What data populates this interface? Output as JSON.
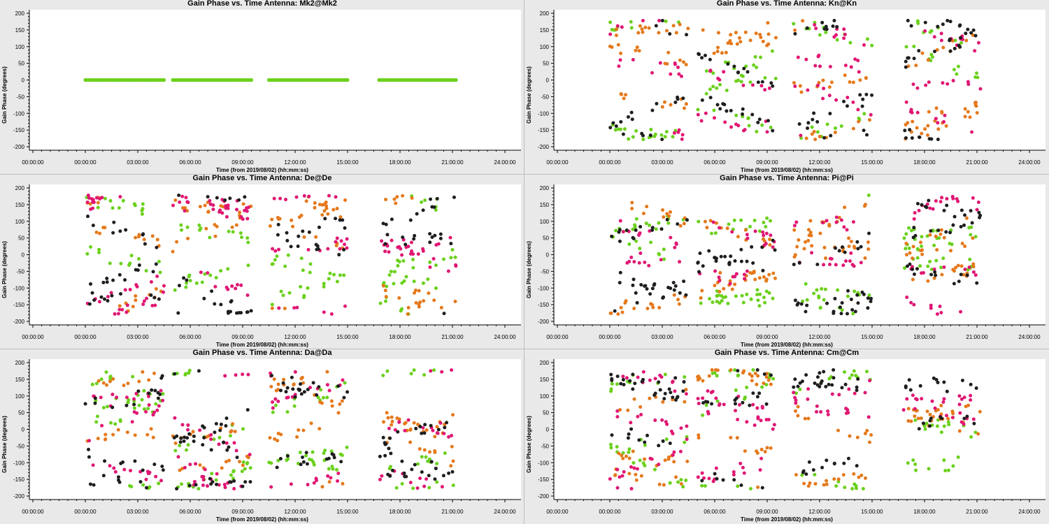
{
  "figure": {
    "xlabel": "Time (from 2019/08/02) (hh:mm:ss)",
    "ylabel": "Gain Phase (degrees)",
    "x_ticks": [
      "00:00:00",
      "00:00:00",
      "03:00:00",
      "06:00:00",
      "09:00:00",
      "12:00:00",
      "15:00:00",
      "18:00:00",
      "21:00:00",
      "24:00:00"
    ],
    "y_ticks": [
      "200",
      "150",
      "100",
      "50",
      "0",
      "-50",
      "-100",
      "-150",
      "-200"
    ],
    "colors": {
      "correlation_1": "#6bd11c",
      "correlation_2": "#e5791b",
      "correlation_3": "#e01673",
      "correlation_4": "#1e1e1e"
    },
    "background": "#ffffff",
    "panel_frame": "#e9e9e9"
  },
  "chart_data": [
    {
      "type": "scatter",
      "title": "Gain Phase vs. Time Antenna: Mk2@Mk2",
      "xlabel": "Time (from 2019/08/02) (hh:mm:ss)",
      "ylabel": "Gain Phase (degrees)",
      "ylim": [
        -200,
        200
      ],
      "x_ticks": [
        "00:00:00",
        "00:00:00",
        "03:00:00",
        "06:00:00",
        "09:00:00",
        "12:00:00",
        "15:00:00",
        "18:00:00",
        "21:00:00",
        "24:00:00"
      ],
      "scans_hours": [
        [
          0.0,
          4.5
        ],
        [
          5.0,
          9.5
        ],
        [
          10.5,
          15.0
        ],
        [
          16.8,
          21.2
        ]
      ],
      "pattern": "flat",
      "seed": 1,
      "points_per_scan": 45,
      "flat_value": 0
    },
    {
      "type": "scatter",
      "title": "Gain Phase vs. Time Antenna: Kn@Kn",
      "xlabel": "Time (from 2019/08/02) (hh:mm:ss)",
      "ylabel": "Gain Phase (degrees)",
      "ylim": [
        -200,
        200
      ],
      "x_ticks": [
        "00:00:00",
        "00:00:00",
        "03:00:00",
        "06:00:00",
        "09:00:00",
        "12:00:00",
        "15:00:00",
        "18:00:00",
        "21:00:00",
        "24:00:00"
      ],
      "scans_hours": [
        [
          0.0,
          4.5
        ],
        [
          5.0,
          9.5
        ],
        [
          10.5,
          15.0
        ],
        [
          16.8,
          21.2
        ]
      ],
      "pattern": "wrapped",
      "seed": 2,
      "points_per_scan": 45
    },
    {
      "type": "scatter",
      "title": "Gain Phase vs. Time Antenna: De@De",
      "xlabel": "Time (from 2019/08/02) (hh:mm:ss)",
      "ylabel": "Gain Phase (degrees)",
      "ylim": [
        -200,
        200
      ],
      "x_ticks": [
        "00:00:00",
        "00:00:00",
        "03:00:00",
        "06:00:00",
        "09:00:00",
        "12:00:00",
        "15:00:00",
        "18:00:00",
        "21:00:00",
        "24:00:00"
      ],
      "scans_hours": [
        [
          0.0,
          4.5
        ],
        [
          5.0,
          9.5
        ],
        [
          10.5,
          15.0
        ],
        [
          16.8,
          21.2
        ]
      ],
      "pattern": "wrapped",
      "seed": 3,
      "points_per_scan": 45
    },
    {
      "type": "scatter",
      "title": "Gain Phase vs. Time Antenna: Pi@Pi",
      "xlabel": "Time (from 2019/08/02) (hh:mm:ss)",
      "ylabel": "Gain Phase (degrees)",
      "ylim": [
        -200,
        200
      ],
      "x_ticks": [
        "00:00:00",
        "00:00:00",
        "03:00:00",
        "06:00:00",
        "09:00:00",
        "12:00:00",
        "15:00:00",
        "18:00:00",
        "21:00:00",
        "24:00:00"
      ],
      "scans_hours": [
        [
          0.0,
          4.5
        ],
        [
          5.0,
          9.5
        ],
        [
          10.5,
          15.0
        ],
        [
          16.8,
          21.2
        ]
      ],
      "pattern": "wrapped",
      "seed": 4,
      "points_per_scan": 45
    },
    {
      "type": "scatter",
      "title": "Gain Phase vs. Time Antenna: Da@Da",
      "xlabel": "Time (from 2019/08/02) (hh:mm:ss)",
      "ylabel": "Gain Phase (degrees)",
      "ylim": [
        -200,
        200
      ],
      "x_ticks": [
        "00:00:00",
        "00:00:00",
        "03:00:00",
        "06:00:00",
        "09:00:00",
        "12:00:00",
        "15:00:00",
        "18:00:00",
        "21:00:00",
        "24:00:00"
      ],
      "scans_hours": [
        [
          0.0,
          4.5
        ],
        [
          5.0,
          9.5
        ],
        [
          10.5,
          15.0
        ],
        [
          16.8,
          21.2
        ]
      ],
      "pattern": "wrapped",
      "seed": 5,
      "points_per_scan": 45
    },
    {
      "type": "scatter",
      "title": "Gain Phase vs. Time Antenna: Cm@Cm",
      "xlabel": "Time (from 2019/08/02) (hh:mm:ss)",
      "ylabel": "Gain Phase (degrees)",
      "ylim": [
        -200,
        200
      ],
      "x_ticks": [
        "00:00:00",
        "00:00:00",
        "03:00:00",
        "06:00:00",
        "09:00:00",
        "12:00:00",
        "15:00:00",
        "18:00:00",
        "21:00:00",
        "24:00:00"
      ],
      "scans_hours": [
        [
          0.0,
          4.5
        ],
        [
          5.0,
          9.5
        ],
        [
          10.5,
          15.0
        ],
        [
          16.8,
          21.2
        ]
      ],
      "pattern": "wrapped",
      "seed": 6,
      "points_per_scan": 45
    }
  ]
}
